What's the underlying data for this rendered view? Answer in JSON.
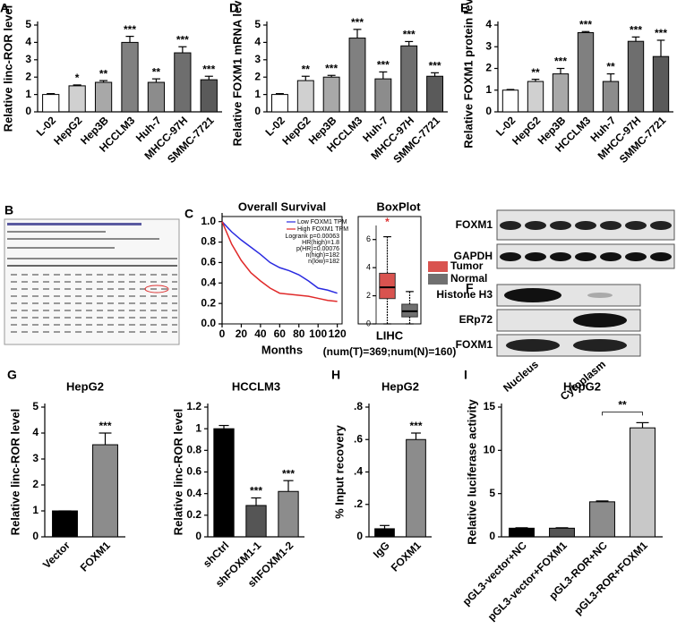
{
  "chart_data": [
    {
      "type": "bar",
      "panel": "A",
      "y_label": "Relative linc-ROR level",
      "categories": [
        "L-02",
        "HepG2",
        "Hep3B",
        "HCCLM3",
        "Huh-7",
        "MHCC-97H",
        "SMMC-7721"
      ],
      "values": [
        1.0,
        1.5,
        1.7,
        4.0,
        1.7,
        3.4,
        1.85
      ],
      "errors": [
        0.05,
        0.05,
        0.1,
        0.35,
        0.2,
        0.35,
        0.2
      ],
      "annotations": [
        null,
        "*",
        "**",
        "***",
        "**",
        "***",
        "***"
      ],
      "colors": [
        "#ffffff",
        "#d0d0d0",
        "#a8a8a8",
        "#808080",
        "#8c8c8c",
        "#6e6e6e",
        "#5a5a5a"
      ],
      "ylim": [
        0,
        5
      ],
      "yticks": [
        0,
        1,
        2,
        3,
        4,
        5
      ]
    },
    {
      "type": "bar",
      "panel": "D",
      "y_label": "Relative FOXM1 mRNA level",
      "categories": [
        "L-02",
        "HepG2",
        "Hep3B",
        "HCCLM3",
        "Huh-7",
        "MHCC-97H",
        "SMMC-7721"
      ],
      "values": [
        1.0,
        1.8,
        2.0,
        4.25,
        1.9,
        3.8,
        2.05
      ],
      "errors": [
        0.05,
        0.25,
        0.1,
        0.5,
        0.4,
        0.25,
        0.2
      ],
      "annotations": [
        null,
        "**",
        "***",
        "***",
        "***",
        "***",
        "***"
      ],
      "colors": [
        "#ffffff",
        "#d0d0d0",
        "#a8a8a8",
        "#808080",
        "#8c8c8c",
        "#6e6e6e",
        "#5a5a5a"
      ],
      "ylim": [
        0,
        5
      ],
      "yticks": [
        0,
        1,
        2,
        3,
        4,
        5
      ]
    },
    {
      "type": "bar",
      "panel": "E",
      "y_label": "Relative FOXM1 protein level",
      "categories": [
        "L-02",
        "HepG2",
        "Hep3B",
        "HCCLM3",
        "Huh-7",
        "MHCC-97H",
        "SMMC-7721"
      ],
      "values": [
        1.0,
        1.4,
        1.75,
        3.65,
        1.4,
        3.25,
        2.55
      ],
      "errors": [
        0.03,
        0.1,
        0.25,
        0.05,
        0.35,
        0.2,
        0.75
      ],
      "annotations": [
        null,
        "**",
        "***",
        "***",
        "**",
        "***",
        "***"
      ],
      "colors": [
        "#ffffff",
        "#d0d0d0",
        "#a8a8a8",
        "#808080",
        "#8c8c8c",
        "#6e6e6e",
        "#5a5a5a"
      ],
      "ylim": [
        0,
        4
      ],
      "yticks": [
        0,
        1,
        2,
        3,
        4
      ]
    },
    {
      "type": "line",
      "panel": "C",
      "title": "Overall Survival",
      "x_label": "Months",
      "x": [
        0,
        10,
        20,
        30,
        40,
        50,
        60,
        70,
        80,
        90,
        100,
        110,
        120
      ],
      "series": [
        {
          "name": "Low FOXM1 TPM",
          "color": "#2a2ae0",
          "values": [
            1.0,
            0.9,
            0.82,
            0.75,
            0.68,
            0.6,
            0.55,
            0.52,
            0.48,
            0.42,
            0.35,
            0.33,
            0.3
          ]
        },
        {
          "name": "High FOXM1 TPM",
          "color": "#e02a2a",
          "values": [
            1.0,
            0.78,
            0.62,
            0.5,
            0.42,
            0.35,
            0.3,
            0.29,
            0.28,
            0.27,
            0.25,
            0.23,
            0.22
          ]
        }
      ],
      "annotations": [
        "Logrank p=0.00063",
        "HR(high)=1.8",
        "p(HR)=0.00076",
        "n(high)=182",
        "n(low)=182"
      ],
      "xlim": [
        0,
        125
      ],
      "xticks": [
        0,
        20,
        40,
        60,
        80,
        100,
        120
      ],
      "ylim": [
        0,
        1.05
      ],
      "yticks": [
        {
          "value": 0,
          "label": "0.0"
        },
        0.2,
        0.4,
        0.6,
        0.8,
        {
          "value": 1,
          "label": "1.0"
        }
      ]
    },
    {
      "type": "box",
      "title": "BoxPlot",
      "x_label": "LIHC",
      "subtitle": "(num(T)=369;num(N)=160)",
      "annotation": "*",
      "boxes": [
        {
          "name": "Tumor",
          "color": "#d9534f",
          "min": 0,
          "q1": 1.8,
          "median": 2.6,
          "q3": 3.6,
          "max": 6.2
        },
        {
          "name": "Normal",
          "color": "#707070",
          "min": 0,
          "q1": 0.5,
          "median": 0.9,
          "q3": 1.4,
          "max": 2.3
        }
      ],
      "ylim": [
        0,
        7
      ],
      "yticks": [
        0,
        2,
        4,
        6
      ]
    },
    {
      "type": "bar",
      "panel": "G",
      "title": "HepG2",
      "y_label": "Relative linc-ROR level",
      "categories": [
        "Vector",
        "FOXM1"
      ],
      "values": [
        1.0,
        3.55
      ],
      "errors": [
        0,
        0.45
      ],
      "annotations": [
        null,
        "***"
      ],
      "colors": [
        "#000000",
        "#8c8c8c"
      ],
      "ylim": [
        0,
        5
      ],
      "yticks": [
        0,
        1,
        2,
        3,
        4,
        5
      ]
    },
    {
      "type": "bar",
      "title": "HCCLM3",
      "y_label": "Relative linc-ROR level",
      "categories": [
        "shCtrl",
        "shFOXM1-1",
        "shFOXM1-2"
      ],
      "values": [
        1.0,
        0.29,
        0.42
      ],
      "errors": [
        0.03,
        0.07,
        0.1
      ],
      "annotations": [
        null,
        "***",
        "***"
      ],
      "colors": [
        "#000000",
        "#555555",
        "#8c8c8c"
      ],
      "ylim": [
        0,
        1.2
      ],
      "yticks": [
        0,
        0.2,
        0.4,
        0.6,
        0.8,
        1,
        1.2
      ]
    },
    {
      "type": "bar",
      "panel": "H",
      "title": "HepG2",
      "y_label": "% Input recovery",
      "categories": [
        "IgG",
        "FOXM1"
      ],
      "values": [
        0.05,
        0.6
      ],
      "errors": [
        0.02,
        0.04
      ],
      "annotations": [
        null,
        "***"
      ],
      "colors": [
        "#000000",
        "#8c8c8c"
      ],
      "ylim": [
        0,
        0.8
      ],
      "yticks": [
        0,
        {
          "value": 0.2,
          "label": ".2"
        },
        {
          "value": 0.4,
          "label": ".4"
        },
        {
          "value": 0.6,
          "label": ".6"
        },
        {
          "value": 0.8,
          "label": ".8"
        }
      ]
    },
    {
      "type": "bar",
      "panel": "I",
      "title": "HepG2",
      "y_label": "Relative luciferase activity",
      "categories": [
        "pGL3-vector+NC",
        "pGL3-vector+FOXM1",
        "pGL3-ROR+NC",
        "pGL3-ROR+FOXM1"
      ],
      "values": [
        1.0,
        1.0,
        4.05,
        12.6
      ],
      "errors": [
        0.05,
        0.05,
        0.1,
        0.6
      ],
      "annotations": [
        null,
        null,
        null,
        null
      ],
      "bracket_label": "**",
      "colors": [
        "#000000",
        "#555555",
        "#8c8c8c",
        "#c8c8c8"
      ],
      "ylim": [
        0,
        15
      ],
      "yticks": [
        0,
        5,
        10,
        15
      ]
    }
  ],
  "figure_b": {
    "panel": "B"
  },
  "blots_e": {
    "rows": [
      "FOXM1",
      "GAPDH"
    ]
  },
  "blots_f": {
    "panel": "F",
    "rows": [
      "Histone H3",
      "ERp72",
      "FOXM1"
    ],
    "lanes": [
      "Nucleus",
      "Cytoplasm"
    ]
  }
}
